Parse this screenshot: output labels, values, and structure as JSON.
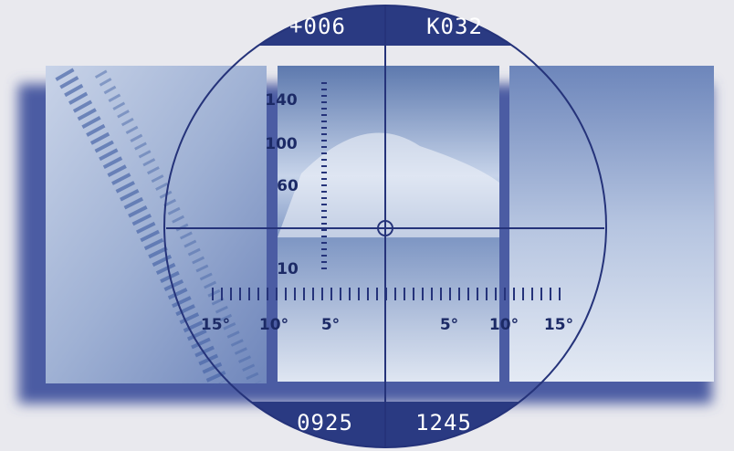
{
  "header": {
    "left": "+006",
    "right": "K032"
  },
  "footer": {
    "left": "0925",
    "right": "1245"
  },
  "vertical_scale": {
    "labels": [
      "140",
      "100",
      "60",
      "10"
    ]
  },
  "horizontal_scale": {
    "labels": [
      "15°",
      "10°",
      "5°",
      "5°",
      "10°",
      "15°"
    ]
  }
}
